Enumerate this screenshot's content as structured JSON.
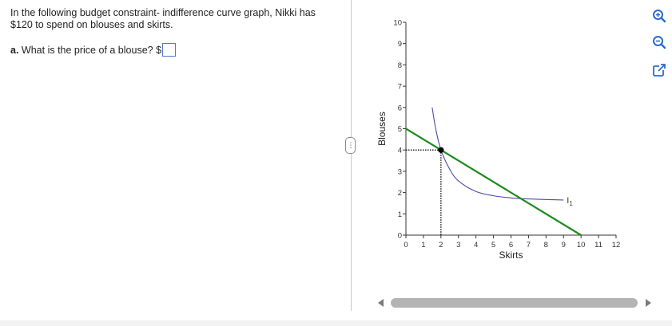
{
  "problem": {
    "text": "In the following budget constraint- indifference curve graph, Nikki has $120 to spend on blouses and skirts.",
    "question_label": "a.",
    "question_text": "What is the price of a blouse? $",
    "answer_value": ""
  },
  "splitter": {
    "glyph": "⋮"
  },
  "chart_data": {
    "type": "line",
    "xlabel": "Skirts",
    "ylabel": "Blouses",
    "xlim": [
      0,
      12
    ],
    "ylim": [
      0,
      10
    ],
    "x_ticks": [
      0,
      1,
      2,
      3,
      4,
      5,
      6,
      7,
      8,
      9,
      10,
      11,
      12
    ],
    "y_ticks": [
      0,
      1,
      2,
      3,
      4,
      5,
      6,
      7,
      8,
      9,
      10
    ],
    "budget_line": {
      "points": [
        [
          0,
          5
        ],
        [
          10,
          0
        ]
      ],
      "color": "#1e8c1e"
    },
    "indifference_curve": {
      "label": "I1",
      "color": "#4b4ba8",
      "points": [
        [
          1.5,
          6
        ],
        [
          1.7,
          5
        ],
        [
          2,
          4
        ],
        [
          2.5,
          3.1
        ],
        [
          3,
          2.55
        ],
        [
          4,
          2.05
        ],
        [
          5,
          1.85
        ],
        [
          6,
          1.75
        ],
        [
          7,
          1.7
        ],
        [
          9,
          1.65
        ]
      ]
    },
    "optimum_point": {
      "x": 2,
      "y": 4,
      "color": "#000000"
    },
    "guide_lines": {
      "style": "dotted",
      "to_x": 2,
      "to_y": 4
    }
  },
  "toolbar": {
    "zoom_in_icon": "zoom-in-icon",
    "zoom_out_icon": "zoom-out-icon",
    "popout_icon": "popout-icon",
    "accent": "#2a6bd1"
  }
}
